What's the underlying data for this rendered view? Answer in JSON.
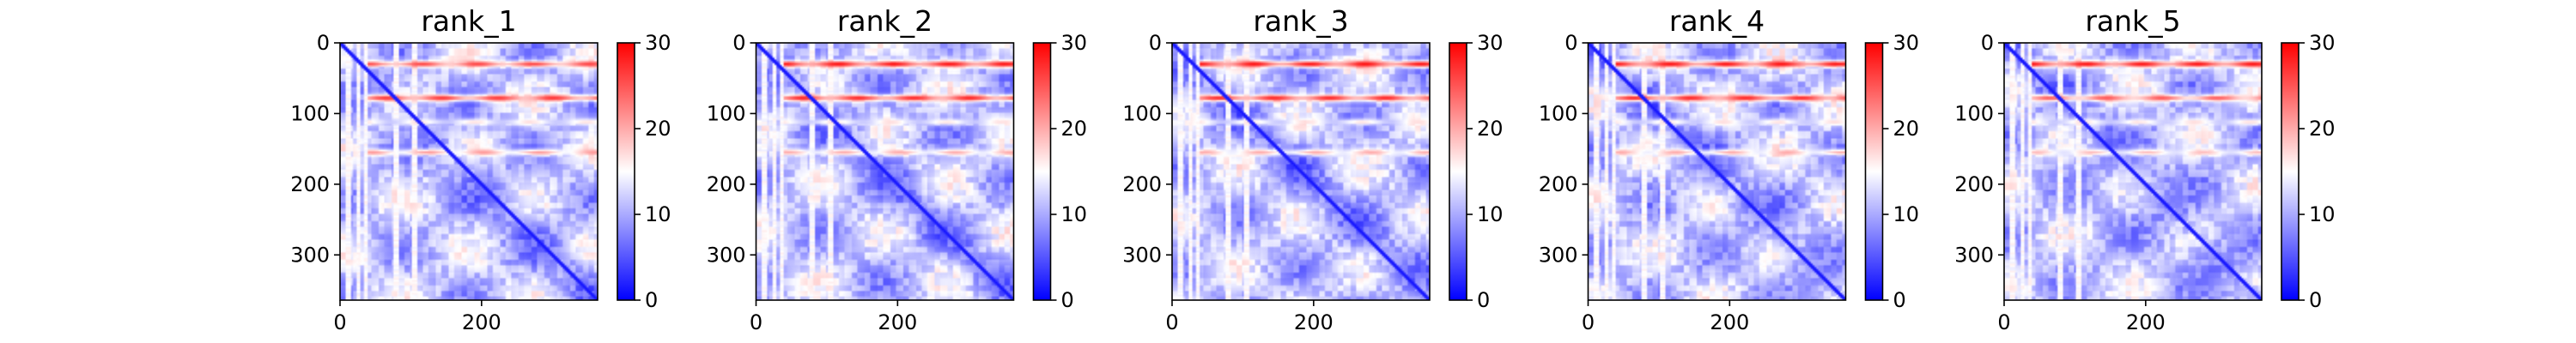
{
  "chart_data": {
    "type": "heatmap",
    "layout": "5 panels in a row, each with its own vertical colorbar on the right",
    "colormap": "bwr",
    "colors": {
      "low": "#0000ff",
      "mid": "#ffffff",
      "high": "#ff0000"
    },
    "value_range": [
      0,
      30
    ],
    "matrix_size": 364,
    "x_ticks": [
      0,
      200
    ],
    "y_ticks": [
      0,
      100,
      200,
      300
    ],
    "colorbar_ticks": [
      0,
      10,
      20,
      30
    ],
    "grid": false,
    "panels": [
      {
        "title": "rank_1",
        "hot_rows": [
          {
            "row": 30,
            "value": 26,
            "from": 40,
            "to": 364
          },
          {
            "row": 78,
            "value": 27,
            "from": 40,
            "to": 364
          },
          {
            "row": 112,
            "value": 17,
            "from": 40,
            "to": 364
          },
          {
            "row": 155,
            "value": 21,
            "from": 40,
            "to": 364
          }
        ],
        "pale_columns": [
          12,
          26,
          36,
          80,
          105
        ],
        "diagonal_value": 1
      },
      {
        "title": "rank_2",
        "hot_rows": [
          {
            "row": 30,
            "value": 29,
            "from": 40,
            "to": 364
          },
          {
            "row": 78,
            "value": 28,
            "from": 40,
            "to": 364
          },
          {
            "row": 112,
            "value": 17,
            "from": 40,
            "to": 364
          },
          {
            "row": 155,
            "value": 20,
            "from": 40,
            "to": 364
          }
        ],
        "pale_columns": [
          12,
          26,
          36,
          80,
          105
        ],
        "diagonal_value": 1
      },
      {
        "title": "rank_3",
        "hot_rows": [
          {
            "row": 30,
            "value": 29,
            "from": 40,
            "to": 364
          },
          {
            "row": 78,
            "value": 28,
            "from": 40,
            "to": 364
          },
          {
            "row": 112,
            "value": 17,
            "from": 40,
            "to": 364
          },
          {
            "row": 155,
            "value": 20,
            "from": 40,
            "to": 364
          }
        ],
        "pale_columns": [
          12,
          26,
          36,
          80,
          105
        ],
        "diagonal_value": 1
      },
      {
        "title": "rank_4",
        "hot_rows": [
          {
            "row": 30,
            "value": 29,
            "from": 40,
            "to": 364
          },
          {
            "row": 78,
            "value": 28,
            "from": 40,
            "to": 364
          },
          {
            "row": 112,
            "value": 17,
            "from": 40,
            "to": 364
          },
          {
            "row": 155,
            "value": 20,
            "from": 40,
            "to": 364
          }
        ],
        "pale_columns": [
          12,
          26,
          36,
          80,
          105
        ],
        "diagonal_value": 1
      },
      {
        "title": "rank_5",
        "hot_rows": [
          {
            "row": 30,
            "value": 29,
            "from": 40,
            "to": 364
          },
          {
            "row": 78,
            "value": 25,
            "from": 40,
            "to": 364
          },
          {
            "row": 112,
            "value": 17,
            "from": 40,
            "to": 364
          },
          {
            "row": 155,
            "value": 19,
            "from": 40,
            "to": 364
          }
        ],
        "pale_columns": [
          12,
          26,
          36,
          80,
          105
        ],
        "diagonal_value": 1
      }
    ]
  }
}
